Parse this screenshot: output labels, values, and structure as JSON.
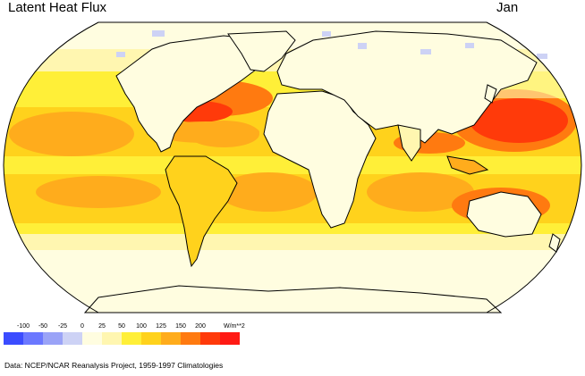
{
  "header": {
    "title": "Latent Heat Flux",
    "month": "Jan"
  },
  "legend": {
    "labels": [
      "-100",
      "-50",
      "-25",
      "0",
      "25",
      "50",
      "100",
      "125",
      "150",
      "200"
    ],
    "unit": "W/m**2",
    "colors": [
      "#3b4cff",
      "#6b78ff",
      "#9aa3f7",
      "#cdd2f5",
      "#fffde0",
      "#fff6b0",
      "#ffef38",
      "#ffd21c",
      "#ffac1c",
      "#ff7a10",
      "#ff3a0a",
      "#ff1a14"
    ]
  },
  "footer": {
    "source": "Data:  NCEP/NCAR Reanalysis Project, 1959-1997 Climatologies"
  },
  "map": {
    "projection": "robinson",
    "continent_fill": "#fffde0",
    "ocean_base": "#ffef38",
    "coastline_color": "#000000"
  }
}
